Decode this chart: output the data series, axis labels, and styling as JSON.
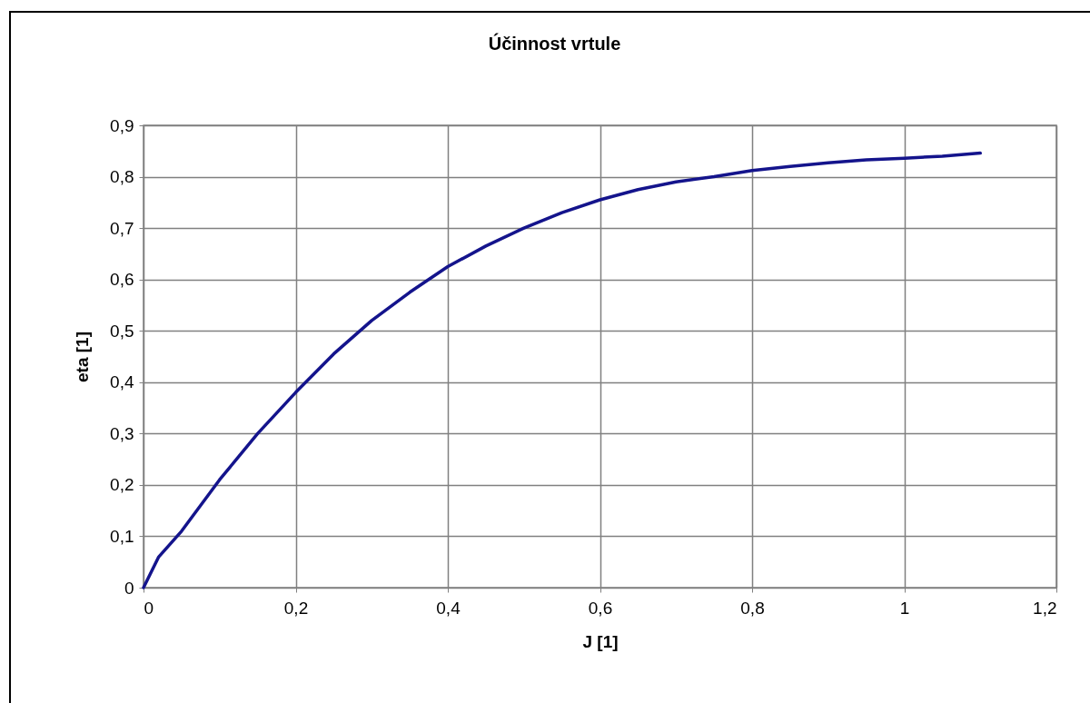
{
  "chart_data": {
    "type": "line",
    "title": "Účinnost vrtule",
    "xlabel": "J [1]",
    "ylabel": "eta [1]",
    "x": [
      0,
      0.02,
      0.05,
      0.1,
      0.15,
      0.2,
      0.25,
      0.3,
      0.35,
      0.4,
      0.45,
      0.5,
      0.55,
      0.6,
      0.65,
      0.7,
      0.75,
      0.8,
      0.85,
      0.9,
      0.95,
      1.0,
      1.05,
      1.1
    ],
    "series": [
      {
        "color": "#14148c",
        "values": [
          0,
          0.06,
          0.11,
          0.21,
          0.3,
          0.38,
          0.455,
          0.52,
          0.575,
          0.625,
          0.665,
          0.7,
          0.73,
          0.755,
          0.775,
          0.79,
          0.8,
          0.812,
          0.82,
          0.827,
          0.833,
          0.836,
          0.84,
          0.846
        ]
      }
    ],
    "xlim": [
      0,
      1.2
    ],
    "ylim": [
      0,
      0.9
    ],
    "xticks": [
      0,
      {
        "value": 0.2,
        "label": "0,2"
      },
      {
        "value": 0.4,
        "label": "0,4"
      },
      {
        "value": 0.6,
        "label": "0,6"
      },
      {
        "value": 0.8,
        "label": "0,8"
      },
      1,
      {
        "value": 1.2,
        "label": "1,2"
      }
    ],
    "yticks": [
      0,
      {
        "value": 0.1,
        "label": "0,1"
      },
      {
        "value": 0.2,
        "label": "0,2"
      },
      {
        "value": 0.3,
        "label": "0,3"
      },
      {
        "value": 0.4,
        "label": "0,4"
      },
      {
        "value": 0.5,
        "label": "0,5"
      },
      {
        "value": 0.6,
        "label": "0,6"
      },
      {
        "value": 0.7,
        "label": "0,7"
      },
      {
        "value": 0.8,
        "label": "0,8"
      },
      {
        "value": 0.9,
        "label": "0,9"
      }
    ],
    "grid": true,
    "legend": false,
    "marker": "none",
    "line_style": "solid"
  }
}
